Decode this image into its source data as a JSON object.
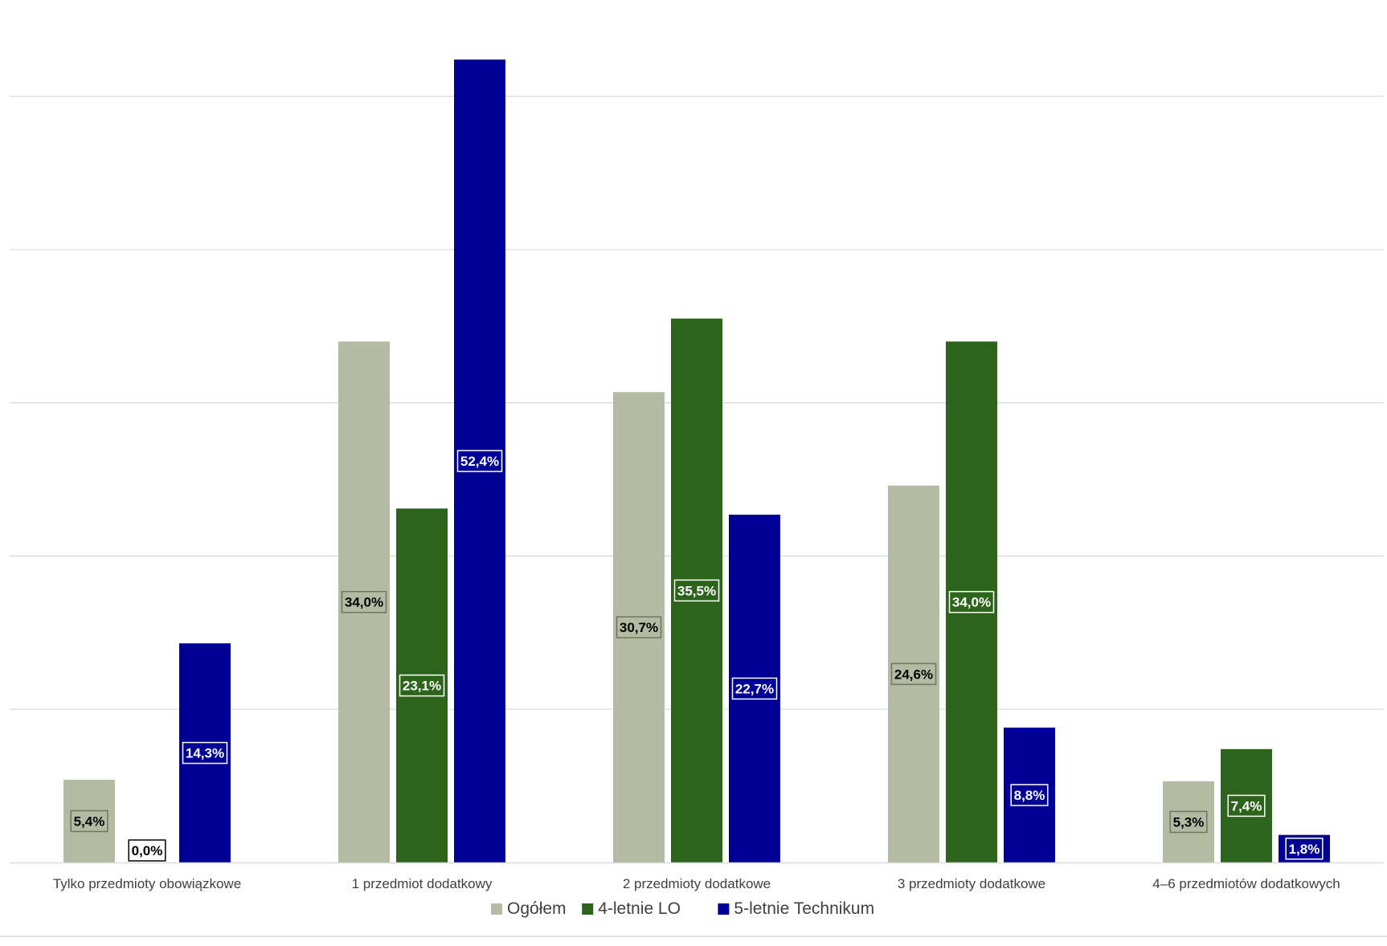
{
  "chart_data": {
    "type": "bar",
    "title": "",
    "xlabel": "",
    "ylabel": "",
    "ylim": [
      0,
      60
    ],
    "grid": true,
    "legend_position": "bottom",
    "categories": [
      "Tylko przedmioty obowiązkowe",
      "1 przedmiot dodatkowy",
      "2 przedmioty dodatkowe",
      "3 przedmioty dodatkowe",
      "4–6 przedmiotów dodatkowych"
    ],
    "series": [
      {
        "name": "Ogółem",
        "color": "#b3bba3",
        "label_text_color": "#000000",
        "label_border_color": "#6f7563",
        "values": [
          5.4,
          34.0,
          30.7,
          24.6,
          5.3
        ],
        "labels": [
          "5,4%",
          "34,0%",
          "30,7%",
          "24,6%",
          "5,3%"
        ]
      },
      {
        "name": "4-letnie LO",
        "color": "#2d641b",
        "label_text_color": "#ffffff",
        "label_border_color": "#ffffff",
        "values": [
          0.0,
          23.1,
          35.5,
          34.0,
          7.4
        ],
        "labels": [
          "0,0%",
          "23,1%",
          "35,5%",
          "34,0%",
          "7,4%"
        ]
      },
      {
        "name": "5-letnie Technikum",
        "color": "#000096",
        "label_text_color": "#ffffff",
        "label_border_color": "#ffffff",
        "values": [
          14.3,
          52.4,
          22.7,
          8.8,
          1.8
        ],
        "labels": [
          "14,3%",
          "52,4%",
          "22,7%",
          "8,8%",
          "1,8%"
        ]
      }
    ]
  }
}
